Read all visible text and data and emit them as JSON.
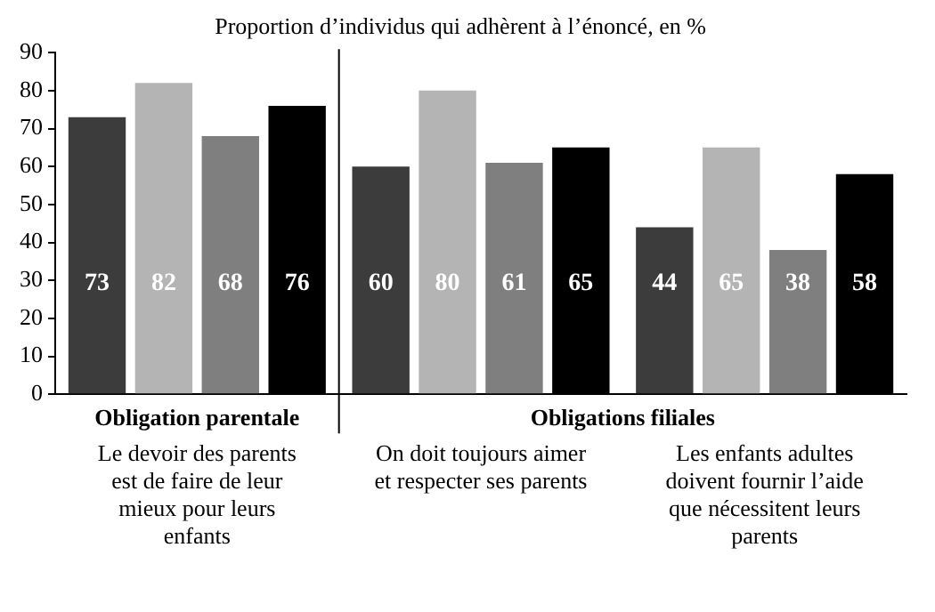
{
  "chart_data": {
    "type": "bar",
    "title": "Proportion d’individus qui adhèrent à l’énoncé, en %",
    "categories": [
      "Le devoir des parents est de faire de leur mieux pour leurs enfants",
      "On doit toujours aimer et respecter ses parents",
      "Les enfants adultes doivent fournir l’aide que nécessitent leurs parents"
    ],
    "series": [
      {
        "color": "#3c3c3c",
        "values": [
          73,
          60,
          44
        ]
      },
      {
        "color": "#b4b4b4",
        "values": [
          82,
          80,
          65
        ]
      },
      {
        "color": "#7f7f7f",
        "values": [
          68,
          61,
          38
        ]
      },
      {
        "color": "#000000",
        "values": [
          76,
          65,
          58
        ]
      }
    ],
    "ylim": [
      0,
      90
    ],
    "yticks": [
      0,
      10,
      20,
      30,
      40,
      50,
      60,
      70,
      80,
      90
    ],
    "grid": false,
    "legend": false,
    "data_labels": true,
    "annotations": [
      "Obligation parentale",
      "Obligations filiales"
    ]
  }
}
